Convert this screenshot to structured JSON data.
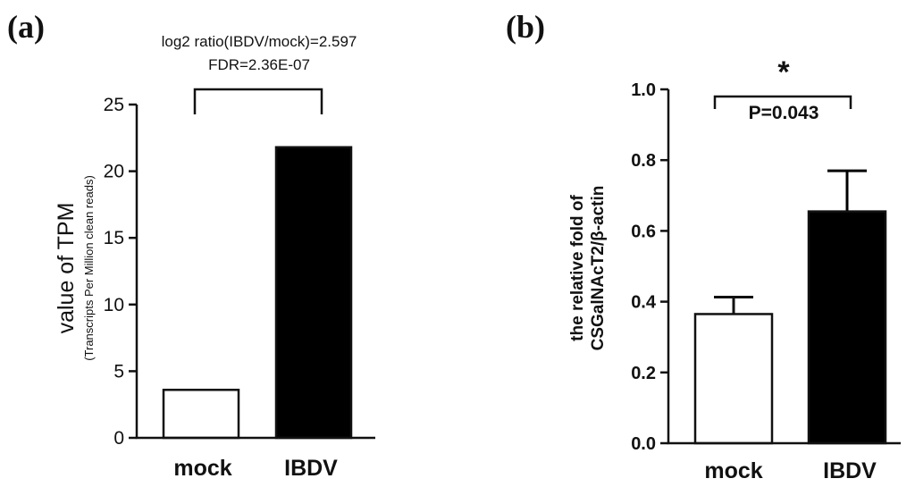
{
  "chart_data": [
    {
      "panel_label": "(a)",
      "type": "bar",
      "categories": [
        "mock",
        "IBDV"
      ],
      "values": [
        3.6,
        21.8
      ],
      "bar_colors": [
        "#ffffff",
        "#000000"
      ],
      "ylabel": "value of TPM",
      "ylabel_sub": "(Transcripts Per Million clean reads)",
      "ylim": [
        0,
        25
      ],
      "yticks": [
        "0",
        "5",
        "10",
        "15",
        "20",
        "25"
      ],
      "grid": false,
      "annotation": {
        "line1": "log2 ratio(IBDV/mock)=2.597",
        "line2": "FDR=2.36E-07"
      }
    },
    {
      "panel_label": "(b)",
      "type": "bar",
      "categories": [
        "mock",
        "IBDV"
      ],
      "values": [
        0.365,
        0.655
      ],
      "errors": [
        0.048,
        0.115
      ],
      "bar_colors": [
        "#ffffff",
        "#000000"
      ],
      "ylabel_line1": "the relative fold of",
      "ylabel_line2": "CSGalNAcT2/β-actin",
      "ylim": [
        0,
        1.0
      ],
      "yticks": [
        "0.0",
        "0.2",
        "0.4",
        "0.6",
        "0.8",
        "1.0"
      ],
      "grid": false,
      "annotation": {
        "significance": "*",
        "pvalue": "P=0.043"
      }
    }
  ]
}
